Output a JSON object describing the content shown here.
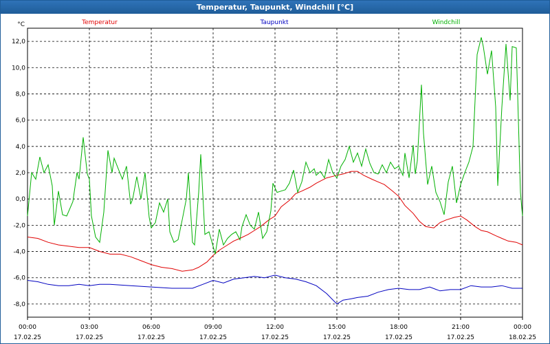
{
  "window": {
    "title": "Temperatur, Taupunkt, Windchill [°C]"
  },
  "chart_data": {
    "type": "line",
    "title": "Temperatur, Taupunkt, Windchill [°C]",
    "ylabel": "°C",
    "ylim": [
      -9,
      13
    ],
    "yticks": [
      12,
      10,
      8,
      6,
      4,
      2,
      0,
      -2,
      -4,
      -6,
      -8
    ],
    "ytick_labels": [
      "12,0",
      "10,0",
      "8,0",
      "6,0",
      "4,0",
      "2,0",
      "0,0",
      "-2,0",
      "-4,0",
      "-6,0",
      "-8,0"
    ],
    "xlim": [
      0,
      24
    ],
    "xticks": [
      0,
      3,
      6,
      9,
      12,
      15,
      18,
      21,
      24
    ],
    "xtick_labels": [
      {
        "time": "00:00",
        "date": "17.02.25"
      },
      {
        "time": "03:00",
        "date": "17.02.25"
      },
      {
        "time": "06:00",
        "date": "17.02.25"
      },
      {
        "time": "09:00",
        "date": "17.02.25"
      },
      {
        "time": "12:00",
        "date": "17.02.25"
      },
      {
        "time": "15:00",
        "date": "17.02.25"
      },
      {
        "time": "18:00",
        "date": "17.02.25"
      },
      {
        "time": "21:00",
        "date": "17.02.25"
      },
      {
        "time": "00:00",
        "date": "18.02.25"
      }
    ],
    "grid": true,
    "legend_position": "top",
    "series": [
      {
        "name": "Temperatur",
        "color": "#e00000",
        "points": [
          [
            0,
            -2.9
          ],
          [
            0.5,
            -3.0
          ],
          [
            1.0,
            -3.3
          ],
          [
            1.5,
            -3.5
          ],
          [
            2.0,
            -3.6
          ],
          [
            2.5,
            -3.7
          ],
          [
            3.0,
            -3.7
          ],
          [
            3.5,
            -4.0
          ],
          [
            4.0,
            -4.2
          ],
          [
            4.5,
            -4.2
          ],
          [
            5.0,
            -4.4
          ],
          [
            5.5,
            -4.7
          ],
          [
            6.0,
            -5.0
          ],
          [
            6.5,
            -5.2
          ],
          [
            7.0,
            -5.3
          ],
          [
            7.5,
            -5.5
          ],
          [
            8.0,
            -5.4
          ],
          [
            8.3,
            -5.2
          ],
          [
            8.7,
            -4.8
          ],
          [
            9.0,
            -4.3
          ],
          [
            9.3,
            -3.9
          ],
          [
            9.7,
            -3.5
          ],
          [
            10.0,
            -3.2
          ],
          [
            10.3,
            -3.0
          ],
          [
            10.7,
            -2.7
          ],
          [
            11.0,
            -2.4
          ],
          [
            11.3,
            -2.1
          ],
          [
            11.7,
            -1.6
          ],
          [
            12.0,
            -1.3
          ],
          [
            12.3,
            -0.6
          ],
          [
            12.7,
            -0.1
          ],
          [
            13.0,
            0.4
          ],
          [
            13.3,
            0.6
          ],
          [
            13.7,
            0.9
          ],
          [
            14.0,
            1.2
          ],
          [
            14.5,
            1.6
          ],
          [
            15.0,
            1.8
          ],
          [
            15.3,
            1.9
          ],
          [
            15.7,
            2.1
          ],
          [
            16.0,
            2.1
          ],
          [
            16.3,
            1.8
          ],
          [
            16.7,
            1.5
          ],
          [
            17.0,
            1.3
          ],
          [
            17.3,
            1.1
          ],
          [
            17.7,
            0.6
          ],
          [
            18.0,
            0.2
          ],
          [
            18.3,
            -0.5
          ],
          [
            18.7,
            -1.1
          ],
          [
            19.0,
            -1.7
          ],
          [
            19.3,
            -2.1
          ],
          [
            19.7,
            -2.2
          ],
          [
            20.0,
            -1.8
          ],
          [
            20.3,
            -1.6
          ],
          [
            20.7,
            -1.4
          ],
          [
            21.0,
            -1.3
          ],
          [
            21.3,
            -1.6
          ],
          [
            21.7,
            -2.1
          ],
          [
            22.0,
            -2.4
          ],
          [
            22.3,
            -2.5
          ],
          [
            22.7,
            -2.8
          ],
          [
            23.0,
            -3.0
          ],
          [
            23.3,
            -3.2
          ],
          [
            23.7,
            -3.3
          ],
          [
            24.0,
            -3.5
          ]
        ]
      },
      {
        "name": "Taupunkt",
        "color": "#0000c0",
        "points": [
          [
            0,
            -6.2
          ],
          [
            0.5,
            -6.3
          ],
          [
            1.0,
            -6.5
          ],
          [
            1.5,
            -6.6
          ],
          [
            2.0,
            -6.6
          ],
          [
            2.5,
            -6.5
          ],
          [
            3.0,
            -6.6
          ],
          [
            3.5,
            -6.5
          ],
          [
            4.0,
            -6.5
          ],
          [
            5.0,
            -6.6
          ],
          [
            6.0,
            -6.7
          ],
          [
            7.0,
            -6.8
          ],
          [
            8.0,
            -6.8
          ],
          [
            8.5,
            -6.5
          ],
          [
            9.0,
            -6.2
          ],
          [
            9.5,
            -6.4
          ],
          [
            10.0,
            -6.1
          ],
          [
            10.5,
            -6.0
          ],
          [
            11.0,
            -5.9
          ],
          [
            11.5,
            -6.0
          ],
          [
            12.0,
            -5.8
          ],
          [
            12.5,
            -6.0
          ],
          [
            13.0,
            -6.1
          ],
          [
            13.5,
            -6.3
          ],
          [
            14.0,
            -6.6
          ],
          [
            14.5,
            -7.2
          ],
          [
            15.0,
            -8.0
          ],
          [
            15.3,
            -7.7
          ],
          [
            15.7,
            -7.6
          ],
          [
            16.0,
            -7.5
          ],
          [
            16.5,
            -7.4
          ],
          [
            17.0,
            -7.1
          ],
          [
            17.5,
            -6.9
          ],
          [
            18.0,
            -6.8
          ],
          [
            18.5,
            -6.9
          ],
          [
            19.0,
            -6.9
          ],
          [
            19.5,
            -6.7
          ],
          [
            20.0,
            -7.0
          ],
          [
            20.5,
            -6.9
          ],
          [
            21.0,
            -6.9
          ],
          [
            21.5,
            -6.6
          ],
          [
            22.0,
            -6.7
          ],
          [
            22.5,
            -6.7
          ],
          [
            23.0,
            -6.6
          ],
          [
            23.5,
            -6.8
          ],
          [
            24.0,
            -6.8
          ]
        ]
      },
      {
        "name": "Windchill",
        "color": "#00b000",
        "points": [
          [
            0,
            -1.3
          ],
          [
            0.2,
            2.0
          ],
          [
            0.4,
            1.5
          ],
          [
            0.6,
            3.2
          ],
          [
            0.8,
            2.0
          ],
          [
            1.0,
            2.6
          ],
          [
            1.2,
            1.0
          ],
          [
            1.3,
            -2.0
          ],
          [
            1.5,
            0.6
          ],
          [
            1.7,
            -1.2
          ],
          [
            1.9,
            -1.3
          ],
          [
            2.2,
            -0.2
          ],
          [
            2.4,
            2.0
          ],
          [
            2.5,
            1.5
          ],
          [
            2.7,
            4.7
          ],
          [
            2.9,
            1.9
          ],
          [
            3.0,
            1.5
          ],
          [
            3.1,
            -1.3
          ],
          [
            3.3,
            -2.9
          ],
          [
            3.5,
            -3.3
          ],
          [
            3.7,
            -1.0
          ],
          [
            3.9,
            3.7
          ],
          [
            4.1,
            2.0
          ],
          [
            4.2,
            3.1
          ],
          [
            4.4,
            2.3
          ],
          [
            4.6,
            1.5
          ],
          [
            4.8,
            2.5
          ],
          [
            5.0,
            -0.4
          ],
          [
            5.1,
            0.0
          ],
          [
            5.3,
            1.7
          ],
          [
            5.5,
            0.0
          ],
          [
            5.7,
            2.0
          ],
          [
            5.9,
            -1.4
          ],
          [
            6.0,
            -2.2
          ],
          [
            6.2,
            -1.8
          ],
          [
            6.4,
            -0.3
          ],
          [
            6.6,
            -1.0
          ],
          [
            6.8,
            0.0
          ],
          [
            6.9,
            -2.5
          ],
          [
            7.1,
            -3.3
          ],
          [
            7.3,
            -3.1
          ],
          [
            7.5,
            -1.6
          ],
          [
            7.7,
            0.0
          ],
          [
            7.8,
            2.0
          ],
          [
            8.0,
            -3.3
          ],
          [
            8.1,
            -3.5
          ],
          [
            8.3,
            0.5
          ],
          [
            8.4,
            3.4
          ],
          [
            8.6,
            -2.7
          ],
          [
            8.8,
            -2.5
          ],
          [
            9.0,
            -3.6
          ],
          [
            9.1,
            -4.2
          ],
          [
            9.3,
            -2.3
          ],
          [
            9.5,
            -3.5
          ],
          [
            9.7,
            -3.0
          ],
          [
            9.9,
            -2.7
          ],
          [
            10.1,
            -2.5
          ],
          [
            10.3,
            -3.1
          ],
          [
            10.4,
            -2.1
          ],
          [
            10.6,
            -1.2
          ],
          [
            10.8,
            -2.0
          ],
          [
            11.0,
            -2.3
          ],
          [
            11.2,
            -1.0
          ],
          [
            11.4,
            -3.0
          ],
          [
            11.6,
            -2.5
          ],
          [
            11.8,
            -0.9
          ],
          [
            11.9,
            1.2
          ],
          [
            12.1,
            0.5
          ],
          [
            12.3,
            0.6
          ],
          [
            12.5,
            0.7
          ],
          [
            12.7,
            1.2
          ],
          [
            12.9,
            2.2
          ],
          [
            13.1,
            0.5
          ],
          [
            13.3,
            1.3
          ],
          [
            13.5,
            2.8
          ],
          [
            13.7,
            2.0
          ],
          [
            13.9,
            2.3
          ],
          [
            14.0,
            1.8
          ],
          [
            14.2,
            2.1
          ],
          [
            14.4,
            1.6
          ],
          [
            14.6,
            3.0
          ],
          [
            14.8,
            2.0
          ],
          [
            15.0,
            1.6
          ],
          [
            15.2,
            2.5
          ],
          [
            15.4,
            3.0
          ],
          [
            15.6,
            4.0
          ],
          [
            15.8,
            2.8
          ],
          [
            16.0,
            3.5
          ],
          [
            16.2,
            2.5
          ],
          [
            16.4,
            3.8
          ],
          [
            16.6,
            2.7
          ],
          [
            16.8,
            2.0
          ],
          [
            17.0,
            1.9
          ],
          [
            17.2,
            2.6
          ],
          [
            17.4,
            2.0
          ],
          [
            17.6,
            2.8
          ],
          [
            17.8,
            2.3
          ],
          [
            18.0,
            2.5
          ],
          [
            18.2,
            1.8
          ],
          [
            18.3,
            3.5
          ],
          [
            18.5,
            1.6
          ],
          [
            18.7,
            4.1
          ],
          [
            18.8,
            1.9
          ],
          [
            18.9,
            2.9
          ],
          [
            19.1,
            8.7
          ],
          [
            19.2,
            5.0
          ],
          [
            19.4,
            1.1
          ],
          [
            19.6,
            2.5
          ],
          [
            19.8,
            0.5
          ],
          [
            20.0,
            -0.2
          ],
          [
            20.2,
            -1.2
          ],
          [
            20.4,
            1.3
          ],
          [
            20.6,
            2.5
          ],
          [
            20.8,
            -0.3
          ],
          [
            21.0,
            1.1
          ],
          [
            21.2,
            2.0
          ],
          [
            21.4,
            2.8
          ],
          [
            21.6,
            4.0
          ],
          [
            21.8,
            11.0
          ],
          [
            22.0,
            12.3
          ],
          [
            22.1,
            11.6
          ],
          [
            22.3,
            9.5
          ],
          [
            22.5,
            11.3
          ],
          [
            22.7,
            7.0
          ],
          [
            22.8,
            1.0
          ],
          [
            23.0,
            7.0
          ],
          [
            23.2,
            11.8
          ],
          [
            23.4,
            7.5
          ],
          [
            23.5,
            11.6
          ],
          [
            23.7,
            11.5
          ],
          [
            23.9,
            0.5
          ],
          [
            24.0,
            -1.3
          ]
        ]
      }
    ]
  }
}
